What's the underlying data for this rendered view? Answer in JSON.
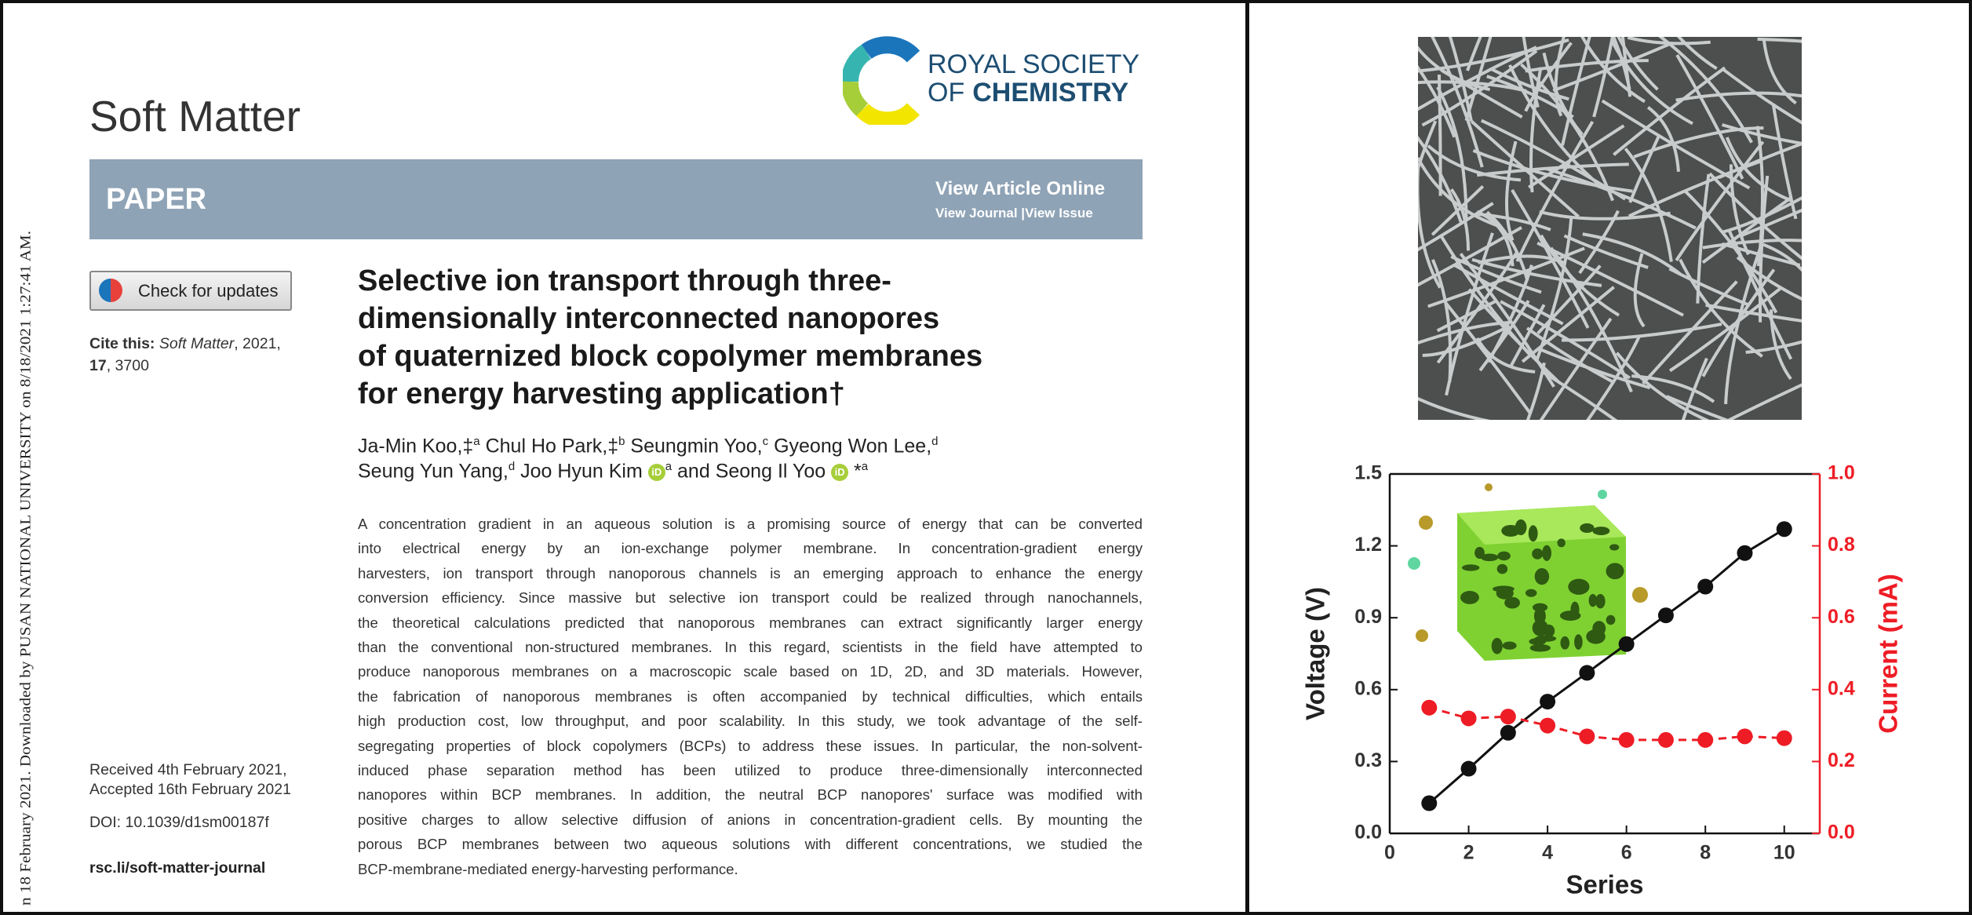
{
  "sidebar": "n 18 February 2021. Downloaded by PUSAN NATIONAL UNIVERSITY on 8/18/2021 1:27:41 AM.",
  "journal": "Soft Matter",
  "publisher": {
    "line1": "ROYAL SOCIETY",
    "line2_prefix": "OF",
    "line2_bold": "CHEMISTRY"
  },
  "banner": {
    "label": "PAPER",
    "view_article": "View Article Online",
    "view_journal": "View Journal",
    "separator": "|",
    "view_issue": "View Issue"
  },
  "check_updates": "Check for updates",
  "cite": {
    "label": "Cite this:",
    "journal": "Soft Matter",
    "year": ", 2021,",
    "volume": "17",
    "page": ", 3700"
  },
  "title_lines": [
    "Selective ion transport through three-",
    "dimensionally interconnected nanopores",
    "of quaternized block copolymer membranes",
    "for energy harvesting application†"
  ],
  "authors": [
    {
      "name": "Ja-Min Koo,‡",
      "sup": "a"
    },
    {
      "name": "Chul Ho Park,‡",
      "sup": "b"
    },
    {
      "name": "Seungmin Yoo,",
      "sup": "c"
    },
    {
      "name": "Gyeong Won Lee,",
      "sup": "d"
    },
    {
      "name": "Seung Yun Yang,",
      "sup": "d"
    },
    {
      "name": "Joo Hyun Kim",
      "sup": "a"
    },
    {
      "name": "Seong Il Yoo",
      "mark": "*",
      "sup": "a"
    }
  ],
  "authors_and": "and",
  "orcid_icon": "iD",
  "abstract_lines": [
    "A concentration gradient in an aqueous solution is a promising source of energy that can be converted",
    "into electrical energy by an ion-exchange polymer membrane. In concentration-gradient energy",
    "harvesters, ion transport through nanoporous channels is an emerging approach to enhance the energy",
    "conversion efficiency. Since massive but selective ion transport could be realized through nanochannels,",
    "the theoretical calculations predicted that nanoporous membranes can extract significantly larger energy",
    "than the conventional non-structured membranes. In this regard, scientists in the field have attempted to",
    "produce nanoporous membranes on a macroscopic scale based on 1D, 2D, and 3D materials. However,",
    "the fabrication of nanoporous membranes is often accompanied by technical difficulties, which entails",
    "high production cost, low throughput, and poor scalability. In this study, we took advantage of the self-",
    "segregating properties of block copolymers (BCPs) to address these issues. In particular, the non-solvent-",
    "induced phase separation method has been utilized to produce three-dimensionally interconnected",
    "nanopores within BCP membranes. In addition, the neutral BCP nanopores' surface was modified with",
    "positive charges to allow selective diffusion of anions in concentration-gradient cells. By mounting the",
    "porous BCP membranes between two aqueous solutions with different concentrations, we studied the",
    "BCP-membrane-mediated energy-harvesting performance."
  ],
  "received": "Received 4th February 2021,",
  "accepted": "Accepted 16th February 2021",
  "doi": "DOI: 10.1039/d1sm00187f",
  "journal_link": "rsc.li/soft-matter-journal",
  "chart_data": {
    "type": "line",
    "x_label": "Series",
    "y_label": "Voltage (V)",
    "y2_label": "Current (mA)",
    "x": [
      1,
      2,
      3,
      4,
      5,
      6,
      7,
      8,
      9,
      10
    ],
    "series": [
      {
        "color": "#111111",
        "values": [
          0.126,
          0.27,
          0.42,
          0.55,
          0.67,
          0.79,
          0.91,
          1.03,
          1.17,
          1.27
        ]
      },
      {
        "color": "#ee1c25",
        "axis": "y2",
        "dashed": true,
        "values": [
          0.35,
          0.32,
          0.325,
          0.3,
          0.27,
          0.26,
          0.26,
          0.26,
          0.27,
          0.265
        ]
      }
    ],
    "xlim": [
      0,
      10.9
    ],
    "xticks": [
      0,
      2,
      4,
      6,
      8,
      10
    ],
    "ylim": [
      0,
      1.5
    ],
    "yticks": [
      {
        "value": 0,
        "label": "0.0"
      },
      {
        "value": 0.3,
        "label": "0.3"
      },
      {
        "value": 0.6,
        "label": "0.6"
      },
      {
        "value": 0.9,
        "label": "0.9"
      },
      {
        "value": 1.2,
        "label": "1.2"
      },
      {
        "value": 1.5,
        "label": "1.5"
      }
    ],
    "y2lim": [
      0,
      1
    ],
    "y2ticks": [
      {
        "value": 0,
        "label": "0.0"
      },
      {
        "value": 0.2,
        "label": "0.2"
      },
      {
        "value": 0.4,
        "label": "0.4"
      },
      {
        "value": 0.6,
        "label": "0.6"
      },
      {
        "value": 0.8,
        "label": "0.8"
      },
      {
        "value": 1,
        "label": "1.0"
      }
    ]
  }
}
